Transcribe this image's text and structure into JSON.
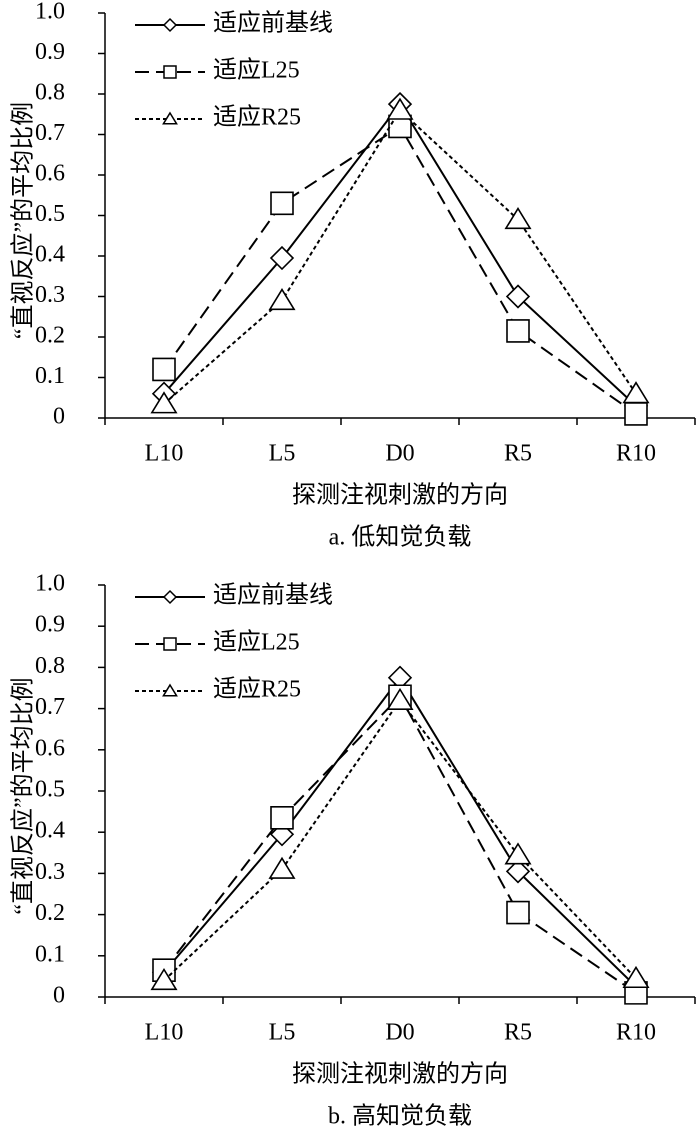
{
  "chart_data": [
    {
      "type": "line",
      "title": "a. 低知觉负载",
      "xlabel": "探测注视刺激的方向",
      "ylabel": "“直视反应”的平均比例",
      "categories": [
        "L10",
        "L5",
        "D0",
        "R5",
        "R10"
      ],
      "series": [
        {
          "name": "适应前基线",
          "color": "#000000",
          "line_style": "solid",
          "marker": "diamond",
          "values": [
            0.06,
            0.395,
            0.775,
            0.3,
            0.03
          ]
        },
        {
          "name": "适应L25",
          "color": "#000000",
          "line_style": "dashed",
          "marker": "square",
          "values": [
            0.12,
            0.53,
            0.72,
            0.215,
            0.01
          ]
        },
        {
          "name": "适应R25",
          "color": "#000000",
          "line_style": "dotted",
          "marker": "triangle",
          "values": [
            0.035,
            0.29,
            0.76,
            0.49,
            0.06
          ]
        }
      ],
      "ylim": [
        0,
        1
      ],
      "yticks": [
        0,
        0.1,
        0.2,
        0.3,
        0.4,
        0.5,
        0.6,
        0.7,
        0.8,
        0.9,
        {
          "value": 1,
          "label": "1.0"
        }
      ],
      "legend": "upper left",
      "grid": false
    },
    {
      "type": "line",
      "title": "b. 高知觉负载",
      "xlabel": "探测注视刺激的方向",
      "ylabel": "“直视反应”的平均比例",
      "categories": [
        "L10",
        "L5",
        "D0",
        "R5",
        "R10"
      ],
      "series": [
        {
          "name": "适应前基线",
          "color": "#000000",
          "line_style": "solid",
          "marker": "diamond",
          "values": [
            0.06,
            0.395,
            0.775,
            0.305,
            0.025
          ]
        },
        {
          "name": "适应L25",
          "color": "#000000",
          "line_style": "dashed",
          "marker": "square",
          "values": [
            0.065,
            0.435,
            0.73,
            0.205,
            0.01
          ]
        },
        {
          "name": "适应R25",
          "color": "#000000",
          "line_style": "dotted",
          "marker": "triangle",
          "values": [
            0.04,
            0.31,
            0.72,
            0.345,
            0.045
          ]
        }
      ],
      "ylim": [
        0,
        1
      ],
      "yticks": [
        0,
        0.1,
        0.2,
        0.3,
        0.4,
        0.5,
        0.6,
        0.7,
        0.8,
        0.9,
        {
          "value": 1,
          "label": "1.0"
        }
      ],
      "legend": "upper left",
      "grid": false
    }
  ]
}
